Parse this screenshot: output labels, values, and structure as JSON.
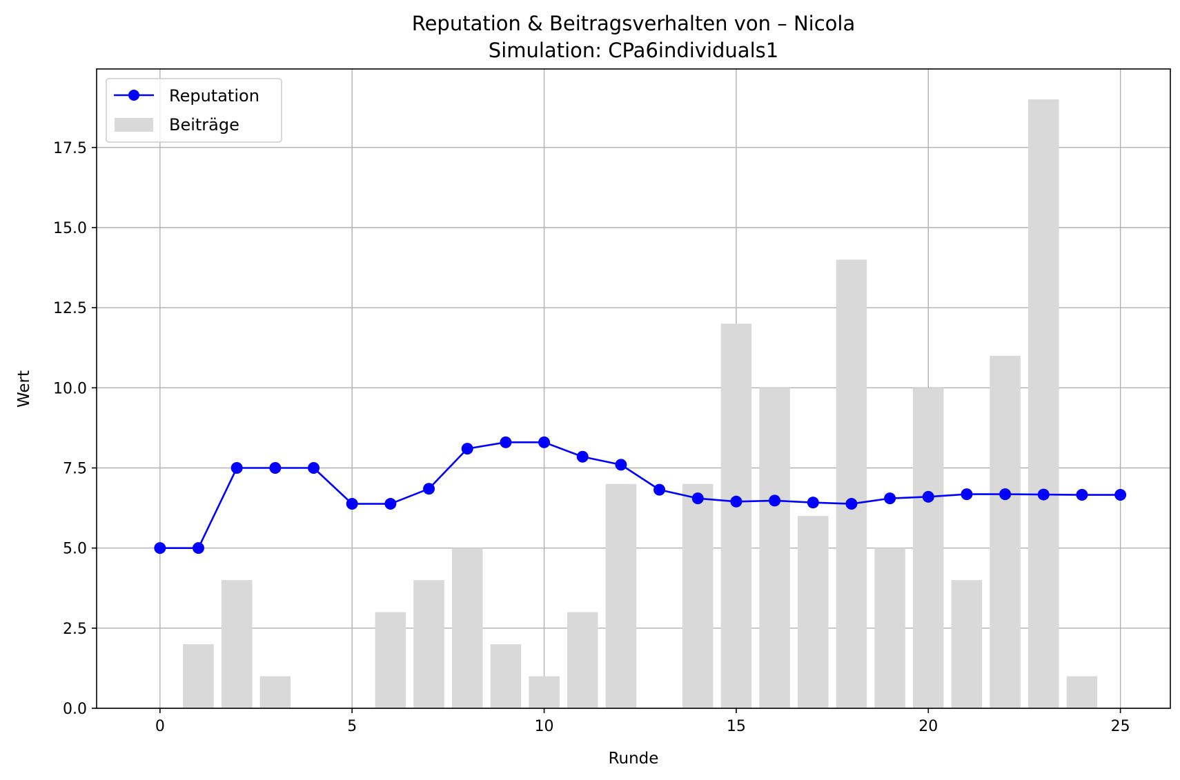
{
  "chart_data": {
    "type": "bar+line",
    "title": "Reputation & Beitragsverhalten von – Nicola",
    "subtitle": "Simulation: CPa6individuals1",
    "xlabel": "Runde",
    "ylabel": "Wert",
    "xlim": [
      -1.65,
      26.3
    ],
    "ylim": [
      0,
      19.95
    ],
    "x_ticks": [
      0,
      5,
      10,
      15,
      20,
      25
    ],
    "x_tick_labels": [
      "0",
      "5",
      "10",
      "15",
      "20",
      "25"
    ],
    "y_ticks": [
      0,
      2.5,
      5,
      7.5,
      10,
      12.5,
      15,
      17.5
    ],
    "y_tick_labels": [
      "0.0",
      "2.5",
      "5.0",
      "7.5",
      "10.0",
      "12.5",
      "15.0",
      "17.5"
    ],
    "grid": true,
    "legend_position": "top-left",
    "series": [
      {
        "name": "Reputation",
        "kind": "line",
        "color": "#0000ff",
        "x": [
          0,
          1,
          2,
          3,
          4,
          5,
          6,
          7,
          8,
          9,
          10,
          11,
          12,
          13,
          14,
          15,
          16,
          17,
          18,
          19,
          20,
          21,
          22,
          23,
          24,
          25
        ],
        "values": [
          5.0,
          5.0,
          7.5,
          7.5,
          7.5,
          6.38,
          6.38,
          6.85,
          8.1,
          8.3,
          8.3,
          7.85,
          7.6,
          6.82,
          6.55,
          6.45,
          6.48,
          6.42,
          6.38,
          6.55,
          6.6,
          6.68,
          6.68,
          6.67,
          6.66,
          6.66
        ]
      },
      {
        "name": "Beiträge",
        "kind": "bar",
        "color": "#d9d9d9",
        "x": [
          0,
          1,
          2,
          3,
          4,
          5,
          6,
          7,
          8,
          9,
          10,
          11,
          12,
          13,
          14,
          15,
          16,
          17,
          18,
          19,
          20,
          21,
          22,
          23,
          24,
          25
        ],
        "values": [
          0,
          2,
          4,
          1,
          0,
          0,
          3,
          4,
          5,
          2,
          1,
          3,
          7,
          0,
          7,
          12,
          10,
          6,
          14,
          5,
          10,
          4,
          11,
          19,
          1,
          0
        ]
      }
    ]
  }
}
